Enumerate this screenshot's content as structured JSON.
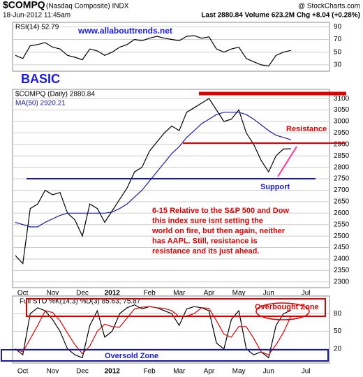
{
  "header": {
    "symbol": "$COMPQ",
    "name": "(Nasdaq Composite) INDX",
    "source": "@ StockCharts.com",
    "date": "18-Jun-2012 11:45am",
    "quote": "Last 2880.84  Volume 623.2M  Chg +8.04 (+0.28%)"
  },
  "annotations": {
    "site": "www.allabouttrends.net",
    "style": "BASIC",
    "resistance": "Resistance",
    "support": "Support",
    "note": [
      "6-15 Relative to the S&P 500 and Dow",
      "this index sure isnt setting the",
      "world on fire, but then again, neither",
      "has AAPL. Still, resistance is",
      "resistance and its just ahead."
    ],
    "overbought": "Overbought Zone",
    "oversold": "Oversold Zone"
  },
  "chart_data": [
    {
      "type": "line",
      "ylim": [
        20,
        97
      ],
      "yticks": [
        30,
        50,
        70,
        90
      ],
      "grid": true,
      "series": [
        {
          "name": "RSI(14) 52.79",
          "color": "#000000",
          "values": [
            45,
            40,
            60,
            62,
            65,
            58,
            55,
            45,
            42,
            38,
            55,
            52,
            45,
            50,
            58,
            62,
            70,
            68,
            72,
            75,
            72,
            70,
            68,
            75,
            76,
            72,
            74,
            55,
            50,
            55,
            58,
            40,
            35,
            30,
            28,
            45,
            50,
            52.79,
            null,
            null
          ]
        }
      ]
    },
    {
      "type": "line",
      "ylim": [
        2275,
        3140
      ],
      "yticks": [
        2300,
        2350,
        2400,
        2450,
        2500,
        2550,
        2600,
        2650,
        2700,
        2750,
        2800,
        2850,
        2900,
        2950,
        3000,
        3050,
        3100
      ],
      "grid": true,
      "categories": [
        null,
        "Oct",
        null,
        null,
        null,
        "Nov",
        null,
        null,
        null,
        "Dec",
        null,
        null,
        null,
        "2012",
        null,
        null,
        null,
        null,
        "Feb",
        null,
        null,
        null,
        "Mar",
        null,
        null,
        null,
        "Apr",
        null,
        null,
        null,
        "May",
        null,
        null,
        null,
        "Jun",
        null,
        null,
        null,
        null,
        "Jul"
      ],
      "series": [
        {
          "name": "$COMPQ (Daily) 2880.84",
          "color": "#000000",
          "values": [
            2415,
            2380,
            2620,
            2640,
            2700,
            2680,
            2690,
            2600,
            2570,
            2500,
            2640,
            2620,
            2560,
            2610,
            2660,
            2710,
            2780,
            2800,
            2870,
            2910,
            2950,
            2980,
            2960,
            3040,
            3060,
            3080,
            3100,
            3050,
            3000,
            3010,
            3050,
            2950,
            2900,
            2830,
            2780,
            2850,
            2880,
            2880.84,
            null,
            null
          ]
        },
        {
          "name": "MA(50) 2920.21",
          "color": "#1a1aa0",
          "values": [
            2560,
            2550,
            2540,
            2540,
            2560,
            2575,
            2590,
            2600,
            2600,
            2600,
            2600,
            2600,
            2600,
            2605,
            2620,
            2640,
            2670,
            2700,
            2740,
            2780,
            2820,
            2860,
            2890,
            2930,
            2960,
            2990,
            3010,
            3030,
            3040,
            3040,
            3040,
            3030,
            3010,
            2985,
            2960,
            2940,
            2930,
            2920.21,
            null,
            null
          ]
        }
      ]
    },
    {
      "type": "line",
      "title": "Full STO %K(14,3) %D(3) 85.63, 75.87",
      "ylim": [
        -4,
        110
      ],
      "yticks": [
        20,
        50,
        80
      ],
      "grid": true,
      "categories": [
        null,
        "Oct",
        null,
        null,
        null,
        "Nov",
        null,
        null,
        null,
        "Dec",
        null,
        null,
        null,
        "2012",
        null,
        null,
        null,
        null,
        "Feb",
        null,
        null,
        null,
        "Mar",
        null,
        null,
        null,
        "Apr",
        null,
        null,
        null,
        "May",
        null,
        null,
        null,
        "Jun",
        null,
        null,
        null,
        null,
        "Jul"
      ],
      "series": [
        {
          "color": "#000000",
          "values": [
            20,
            10,
            80,
            90,
            85,
            70,
            50,
            20,
            10,
            5,
            60,
            85,
            40,
            50,
            80,
            90,
            95,
            88,
            92,
            90,
            85,
            80,
            60,
            88,
            92,
            90,
            85,
            30,
            20,
            70,
            85,
            20,
            10,
            15,
            5,
            60,
            80,
            85.63,
            null,
            null
          ]
        },
        {
          "color": "#e00000",
          "values": [
            20,
            15,
            37,
            60,
            85,
            82,
            68,
            47,
            27,
            12,
            25,
            50,
            62,
            58,
            57,
            73,
            88,
            91,
            92,
            90,
            89,
            85,
            75,
            76,
            80,
            90,
            89,
            68,
            45,
            40,
            58,
            58,
            38,
            15,
            10,
            27,
            48,
            75.87,
            null,
            null
          ]
        }
      ]
    }
  ]
}
